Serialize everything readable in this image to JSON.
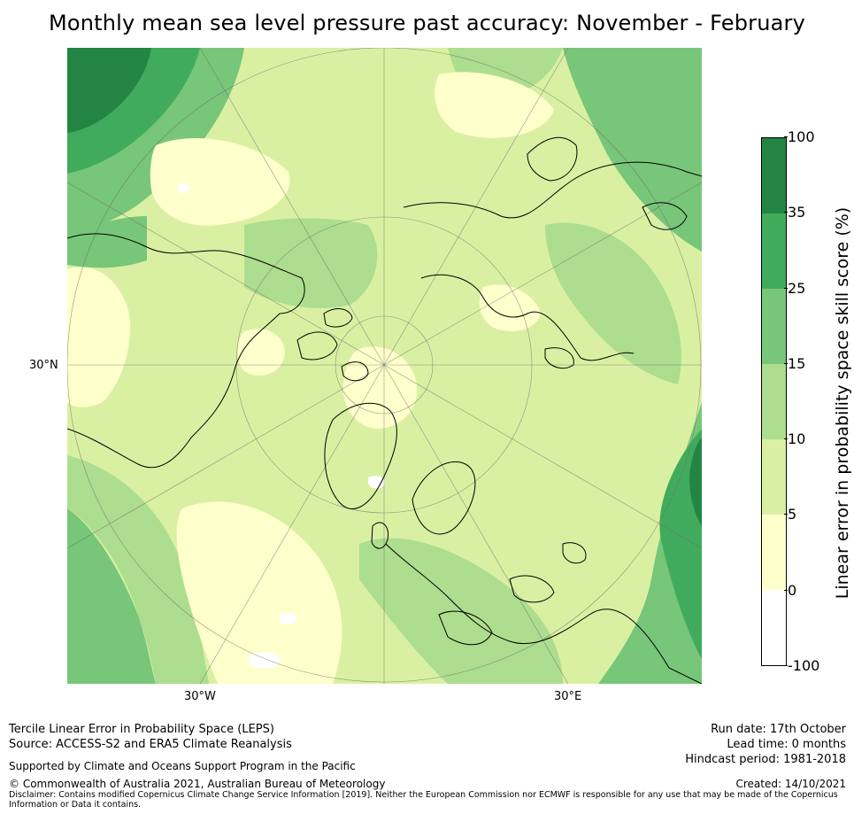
{
  "title": "Monthly mean sea level pressure past accuracy: November - February",
  "map": {
    "labels": {
      "left_lat": "30°N",
      "bottom_left_lon": "30°W",
      "bottom_right_lon": "30°E"
    },
    "colors": {
      "lvl_neg": "#ffffff",
      "lvl_0_5": "#ffffcc",
      "lvl_5_10": "#d9f0a3",
      "lvl_10_15": "#addd8e",
      "lvl_15_25": "#78c679",
      "lvl_25_35": "#41ab5d",
      "lvl_35_100": "#238443",
      "coast": "#000000",
      "grid": "#6b6b6b"
    }
  },
  "colorbar": {
    "label": "Linear error in probability space skill score (%)",
    "ticks": [
      "100",
      "35",
      "25",
      "15",
      "10",
      "5",
      "0",
      "-100"
    ],
    "colors": [
      "#238443",
      "#41ab5d",
      "#78c679",
      "#addd8e",
      "#d9f0a3",
      "#ffffcc",
      "#ffffff"
    ]
  },
  "footer": {
    "line1": "Tercile Linear Error in Probability Space (LEPS)",
    "line2": "Source: ACCESS-S2 and ERA5 Climate Reanalysis",
    "supported": "Supported by Climate and Oceans Support Program in the Pacific",
    "copyright": "© Commonwealth of Australia 2021, Australian Bureau of Meteorology",
    "disclaimer": "Disclaimer: Contains modified Copernicus Climate Change Service Information [2019]. Neither the European Commission nor ECMWF is responsible for any use that may be made of the Copernicus Information or Data it contains.",
    "run_date": "Run date: 17th October",
    "lead_time": "Lead time: 0 months",
    "hindcast": "Hindcast period: 1981-2018",
    "created": "Created: 14/10/2021"
  }
}
